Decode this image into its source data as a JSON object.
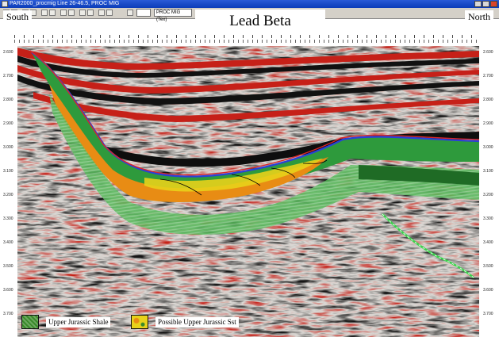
{
  "window": {
    "title": "PAR2000_procmig Line 26-46.5, PROC MIG"
  },
  "toolbar": {
    "icons": [
      "pointer-icon",
      "zoom-icon",
      "pan-icon",
      "pick-icon",
      "horizon-icon",
      "fault-icon",
      "measure-icon",
      "grid-icon",
      "display-icon",
      "palette-icon",
      "print-icon",
      "lock-icon",
      "settings-icon"
    ],
    "selectors": [
      "",
      "PROC MIG (Tex)"
    ]
  },
  "section": {
    "title": "Lead Beta",
    "left_label": "South",
    "right_label": "North",
    "time_ticks": [
      "2.600",
      "2.700",
      "2.800",
      "2.900",
      "3.000",
      "3.100",
      "3.200",
      "3.300",
      "3.400",
      "3.500",
      "3.600",
      "3.700"
    ]
  },
  "legend": [
    {
      "label": "Upper Jurassic Shale",
      "color": "#3a8a2a"
    },
    {
      "label": "Possible Upper Jurassic Sst",
      "color": "#e8d21a"
    }
  ],
  "colors": {
    "red": "#c8201c",
    "black": "#111111",
    "green": "#2e9a3c",
    "orange": "#e88c14",
    "yellow": "#e8d21a",
    "blue": "#2a3fd8"
  }
}
